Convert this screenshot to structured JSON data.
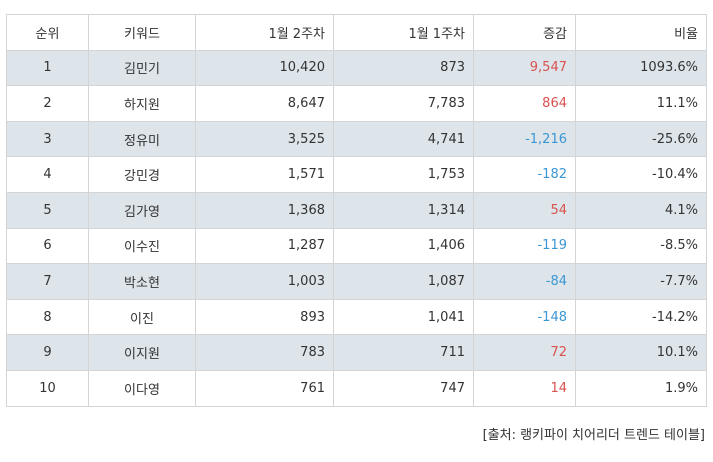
{
  "table": {
    "header": [
      "순위",
      "키워드",
      "1월 2주차",
      "1월 1주차",
      "증감",
      "비율"
    ],
    "rows": [
      [
        "1",
        "김민기",
        "10,420",
        "873",
        "9,547",
        "1093.6%"
      ],
      [
        "2",
        "하지원",
        "8,647",
        "7,783",
        "864",
        "11.1%"
      ],
      [
        "3",
        "정유미",
        "3,525",
        "4,741",
        "-1,216",
        "-25.6%"
      ],
      [
        "4",
        "강민경",
        "1,571",
        "1,753",
        "-182",
        "-10.4%"
      ],
      [
        "5",
        "김가영",
        "1,368",
        "1,314",
        "54",
        "4.1%"
      ],
      [
        "6",
        "이수진",
        "1,287",
        "1,406",
        "-119",
        "-8.5%"
      ],
      [
        "7",
        "박소현",
        "1,003",
        "1,087",
        "-84",
        "-7.7%"
      ],
      [
        "8",
        "이진",
        "893",
        "1,041",
        "-148",
        "-14.2%"
      ],
      [
        "9",
        "이지원",
        "783",
        "711",
        "72",
        "10.1%"
      ],
      [
        "10",
        "이다영",
        "761",
        "747",
        "14",
        "1.9%"
      ]
    ]
  },
  "source": "[출처: 랭키파이 치어리더 트렌드 테이블]"
}
